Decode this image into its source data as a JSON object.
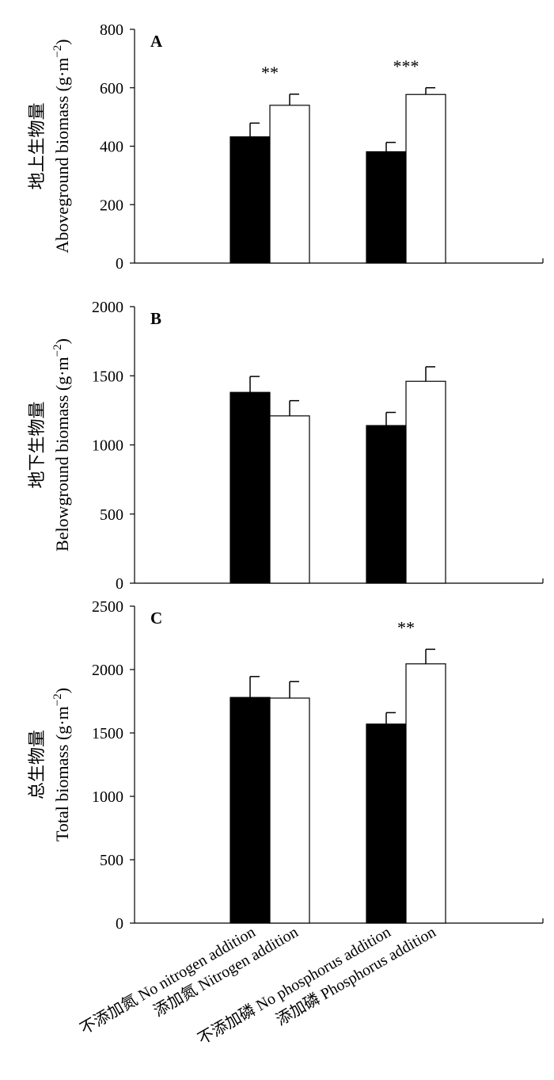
{
  "chart_data": [
    {
      "type": "bar",
      "panel_label": "A",
      "ylabel_cn": "地上生物量",
      "ylabel_en": "Aboveground biomass (g·m",
      "ylabel_unit_exp": "−2",
      "ylabel_close": ")",
      "ylim": [
        0,
        800
      ],
      "yticks": [
        "0",
        "200",
        "400",
        "600",
        "800"
      ],
      "ytick_values": [
        0,
        200,
        400,
        600,
        800
      ],
      "bars": [
        {
          "group": 0,
          "fill": "black",
          "value": 432,
          "error": 47
        },
        {
          "group": 0,
          "fill": "white",
          "value": 540,
          "error": 38
        },
        {
          "group": 1,
          "fill": "black",
          "value": 381,
          "error": 32
        },
        {
          "group": 1,
          "fill": "white",
          "value": 577,
          "error": 23
        }
      ],
      "significance": [
        {
          "group": 0,
          "text": "**"
        },
        {
          "group": 1,
          "text": "***"
        }
      ]
    },
    {
      "type": "bar",
      "panel_label": "B",
      "ylabel_cn": "地下生物量",
      "ylabel_en": "Belowground biomass (g·m",
      "ylabel_unit_exp": "−2",
      "ylabel_close": ")",
      "ylim": [
        0,
        2000
      ],
      "yticks": [
        "0",
        "500",
        "1000",
        "1500",
        "2000"
      ],
      "ytick_values": [
        0,
        500,
        1000,
        1500,
        2000
      ],
      "bars": [
        {
          "group": 0,
          "fill": "black",
          "value": 1380,
          "error": 115
        },
        {
          "group": 0,
          "fill": "white",
          "value": 1210,
          "error": 110
        },
        {
          "group": 1,
          "fill": "black",
          "value": 1140,
          "error": 95
        },
        {
          "group": 1,
          "fill": "white",
          "value": 1460,
          "error": 105
        }
      ],
      "significance": []
    },
    {
      "type": "bar",
      "panel_label": "C",
      "ylabel_cn": "总生物量",
      "ylabel_en": "Total biomass (g·m",
      "ylabel_unit_exp": "−2",
      "ylabel_close": ")",
      "ylim": [
        0,
        2500
      ],
      "yticks": [
        "0",
        "500",
        "1000",
        "1500",
        "2000",
        "2500"
      ],
      "ytick_values": [
        0,
        500,
        1000,
        1500,
        2000,
        2500
      ],
      "bars": [
        {
          "group": 0,
          "fill": "black",
          "value": 1780,
          "error": 165
        },
        {
          "group": 0,
          "fill": "white",
          "value": 1775,
          "error": 130
        },
        {
          "group": 1,
          "fill": "black",
          "value": 1570,
          "error": 90
        },
        {
          "group": 1,
          "fill": "white",
          "value": 2045,
          "error": 115
        }
      ],
      "significance": [
        {
          "group": 1,
          "text": "**"
        }
      ]
    }
  ],
  "x_categories": [
    "不添加氮 No nitrogen addition",
    "添加氮 Nitrogen addition",
    "不添加磷 No phosphorus addition",
    "添加磷 Phosphorus addition"
  ],
  "colors": {
    "black_bar": "#000000",
    "white_bar": "#ffffff",
    "axis": "#000000"
  }
}
